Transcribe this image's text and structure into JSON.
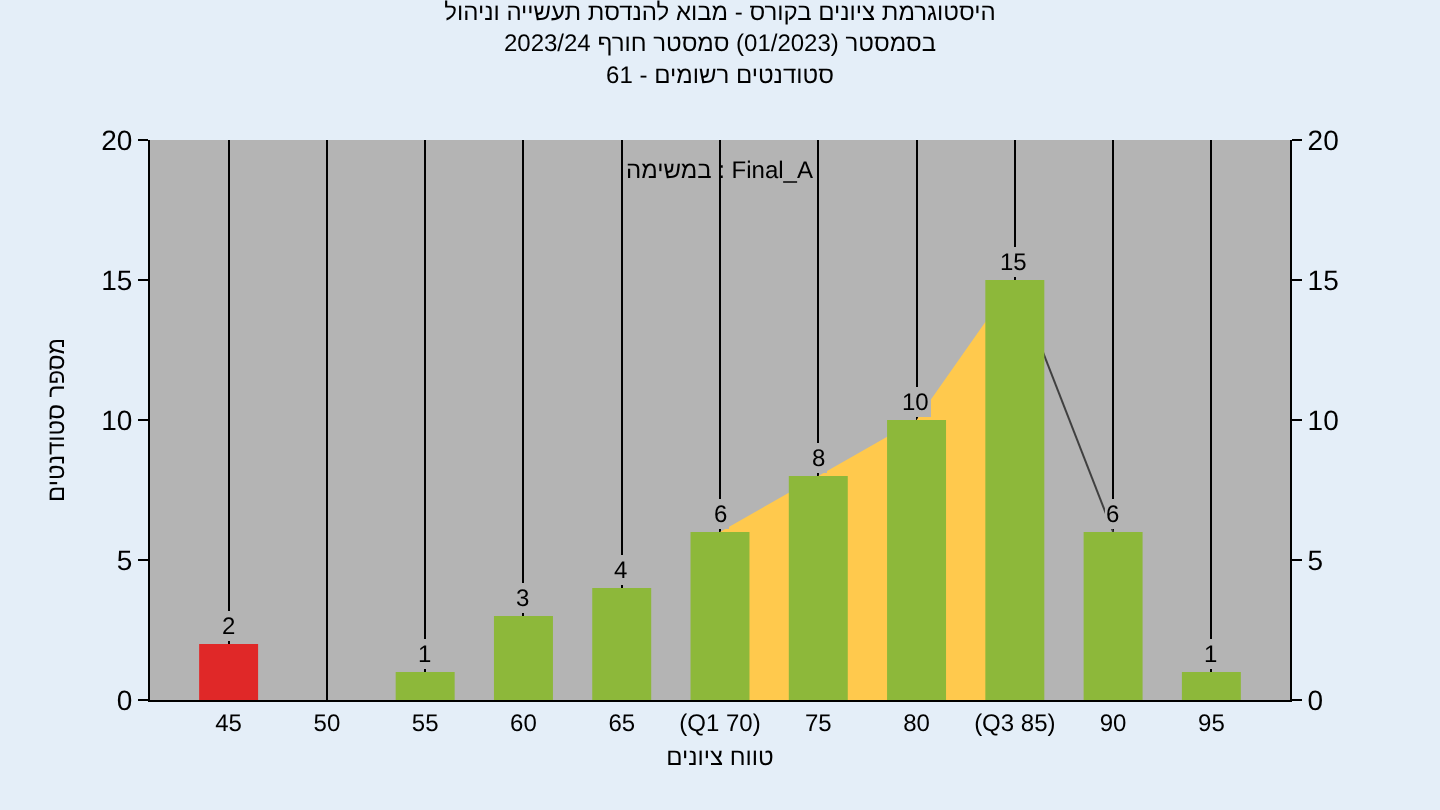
{
  "chart_data": {
    "type": "bar",
    "title": "היסטוגרמת ציונים בקורס - מבוא להנדסת תעשייה וניהול\nבסמסטר (01/2023) סמסטר חורף 2023/24\nסטודנטים רשומים - 61",
    "xlabel": "טווח ציונים",
    "ylabel": "מספר סטודנטים",
    "annotations": [
      "במשימה : Final_A"
    ],
    "categories": [
      "45",
      "50",
      "55",
      "60",
      "65",
      "(Q1 70)",
      "75",
      "80",
      "(Q3 85)",
      "90",
      "95"
    ],
    "series": [
      {
        "type": "area",
        "color": "#ffc94d",
        "values": [
          null,
          null,
          null,
          null,
          null,
          6,
          8,
          10,
          15,
          null,
          null
        ]
      },
      {
        "type": "line",
        "color": "#404040",
        "values": [
          null,
          null,
          null,
          null,
          null,
          null,
          null,
          null,
          15,
          6,
          null
        ]
      },
      {
        "colors": [
          "#e02828",
          "#8db83a",
          "#8db83a",
          "#8db83a",
          "#8db83a",
          "#8db83a",
          "#8db83a",
          "#8db83a",
          "#8db83a",
          "#8db83a",
          "#8db83a"
        ],
        "values": [
          2,
          0,
          1,
          3,
          4,
          6,
          8,
          10,
          15,
          6,
          1
        ],
        "value_labels": [
          "2",
          null,
          "1",
          "3",
          "4",
          "6",
          "8",
          "10",
          "15",
          "6",
          "1"
        ]
      }
    ],
    "ylim": [
      0,
      20
    ],
    "yticks": [
      0,
      5,
      10,
      15,
      20
    ],
    "y2lim": [
      0,
      20
    ],
    "y2ticks": [
      0,
      5,
      10,
      15,
      20
    ],
    "grid": "x"
  }
}
